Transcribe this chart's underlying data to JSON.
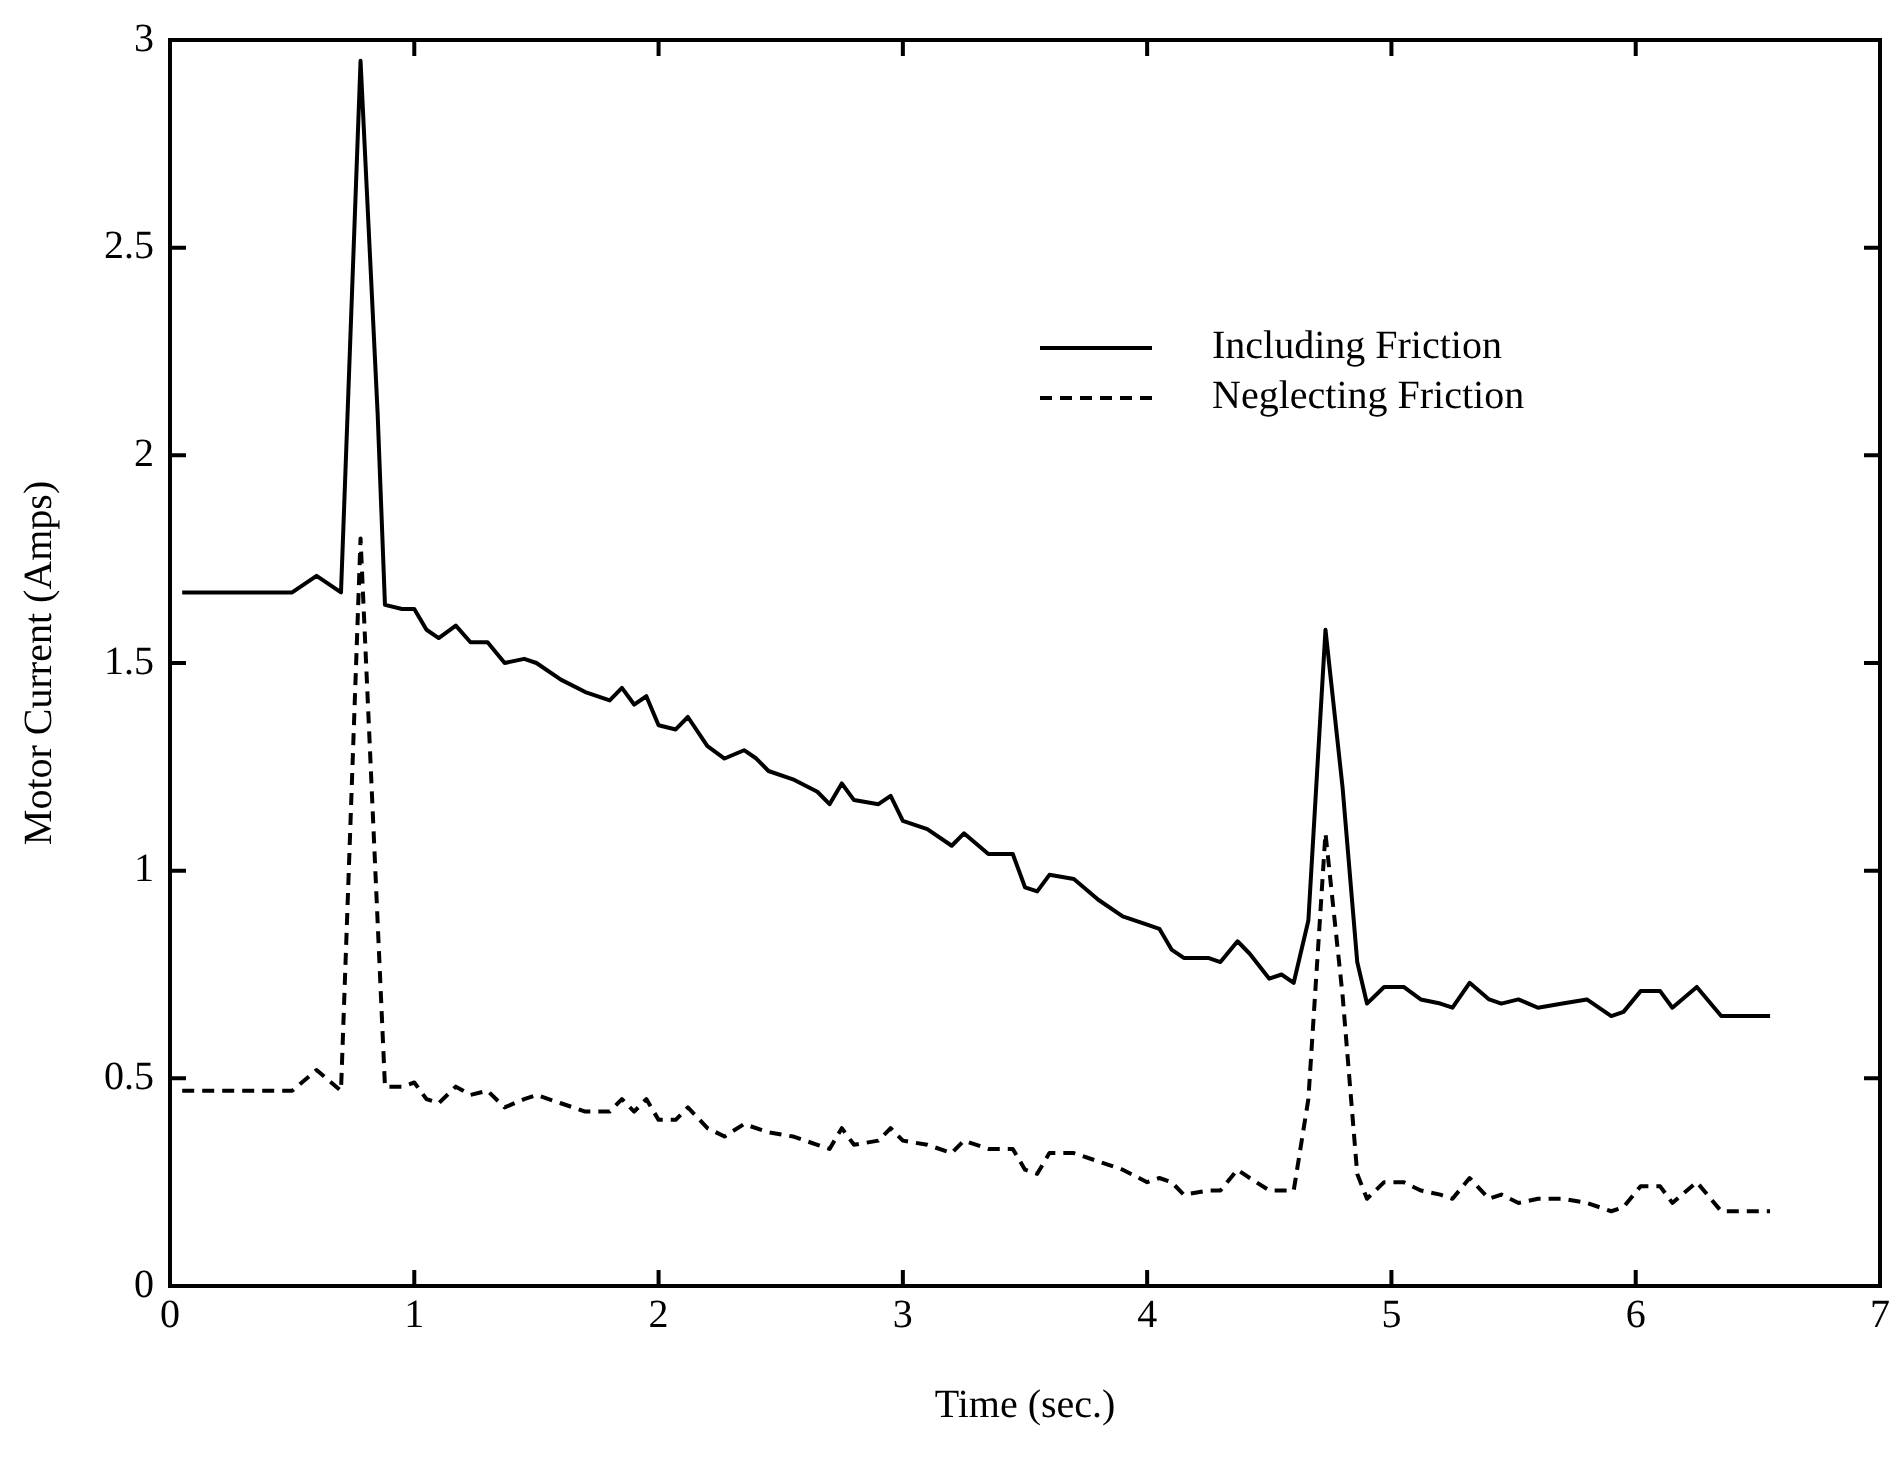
{
  "chart_data": {
    "type": "line",
    "xlabel": "Time (sec.)",
    "ylabel": "Motor Current (Amps)",
    "xlim": [
      0,
      7
    ],
    "xticks": [
      0,
      1,
      2,
      3,
      4,
      5,
      6,
      7
    ],
    "ylim": [
      0,
      3
    ],
    "yticks": [
      0,
      0.5,
      1,
      1.5,
      2,
      2.5,
      3
    ],
    "grid": false,
    "legend": "top right",
    "marker": "none",
    "series": [
      {
        "name": "Including Friction",
        "color": "#000000",
        "line_style": "solid",
        "x": [
          0.05,
          0.5,
          0.6,
          0.7,
          0.78,
          0.85,
          0.88,
          0.95,
          1.0,
          1.05,
          1.1,
          1.17,
          1.23,
          1.3,
          1.37,
          1.45,
          1.5,
          1.6,
          1.7,
          1.8,
          1.85,
          1.9,
          1.95,
          2.0,
          2.07,
          2.12,
          2.2,
          2.27,
          2.35,
          2.4,
          2.45,
          2.55,
          2.65,
          2.7,
          2.75,
          2.8,
          2.9,
          2.95,
          3.0,
          3.1,
          3.2,
          3.25,
          3.35,
          3.45,
          3.5,
          3.55,
          3.6,
          3.7,
          3.8,
          3.9,
          4.0,
          4.05,
          4.1,
          4.15,
          4.25,
          4.3,
          4.37,
          4.42,
          4.5,
          4.55,
          4.6,
          4.66,
          4.73,
          4.8,
          4.86,
          4.9,
          4.97,
          5.05,
          5.12,
          5.2,
          5.25,
          5.32,
          5.4,
          5.45,
          5.52,
          5.6,
          5.7,
          5.8,
          5.9,
          5.95,
          6.02,
          6.1,
          6.15,
          6.25,
          6.35,
          6.55
        ],
        "values": [
          1.67,
          1.67,
          1.71,
          1.67,
          2.95,
          2.1,
          1.64,
          1.63,
          1.63,
          1.58,
          1.56,
          1.59,
          1.55,
          1.55,
          1.5,
          1.51,
          1.5,
          1.46,
          1.43,
          1.41,
          1.44,
          1.4,
          1.42,
          1.35,
          1.34,
          1.37,
          1.3,
          1.27,
          1.29,
          1.27,
          1.24,
          1.22,
          1.19,
          1.16,
          1.21,
          1.17,
          1.16,
          1.18,
          1.12,
          1.1,
          1.06,
          1.09,
          1.04,
          1.04,
          0.96,
          0.95,
          0.99,
          0.98,
          0.93,
          0.89,
          0.87,
          0.86,
          0.81,
          0.79,
          0.79,
          0.78,
          0.83,
          0.8,
          0.74,
          0.75,
          0.73,
          0.88,
          1.58,
          1.2,
          0.78,
          0.68,
          0.72,
          0.72,
          0.69,
          0.68,
          0.67,
          0.73,
          0.69,
          0.68,
          0.69,
          0.67,
          0.68,
          0.69,
          0.65,
          0.66,
          0.71,
          0.71,
          0.67,
          0.72,
          0.65,
          0.65
        ]
      },
      {
        "name": "Neglecting Friction",
        "color": "#000000",
        "line_style": "dashed",
        "x": [
          0.05,
          0.5,
          0.6,
          0.7,
          0.78,
          0.88,
          0.95,
          1.0,
          1.05,
          1.1,
          1.17,
          1.23,
          1.3,
          1.37,
          1.45,
          1.5,
          1.6,
          1.7,
          1.8,
          1.85,
          1.9,
          1.95,
          2.0,
          2.07,
          2.12,
          2.2,
          2.27,
          2.35,
          2.45,
          2.55,
          2.65,
          2.7,
          2.75,
          2.8,
          2.9,
          2.95,
          3.0,
          3.1,
          3.2,
          3.25,
          3.35,
          3.45,
          3.5,
          3.55,
          3.6,
          3.7,
          3.8,
          3.9,
          4.0,
          4.05,
          4.1,
          4.15,
          4.25,
          4.3,
          4.37,
          4.42,
          4.5,
          4.6,
          4.66,
          4.73,
          4.8,
          4.86,
          4.9,
          4.97,
          5.05,
          5.12,
          5.2,
          5.25,
          5.32,
          5.4,
          5.45,
          5.52,
          5.6,
          5.7,
          5.8,
          5.9,
          5.95,
          6.02,
          6.1,
          6.15,
          6.25,
          6.35,
          6.55
        ],
        "values": [
          0.47,
          0.47,
          0.52,
          0.47,
          1.8,
          0.48,
          0.48,
          0.49,
          0.45,
          0.44,
          0.48,
          0.46,
          0.47,
          0.43,
          0.45,
          0.46,
          0.44,
          0.42,
          0.42,
          0.45,
          0.42,
          0.45,
          0.4,
          0.4,
          0.43,
          0.38,
          0.36,
          0.39,
          0.37,
          0.36,
          0.34,
          0.33,
          0.38,
          0.34,
          0.35,
          0.38,
          0.35,
          0.34,
          0.32,
          0.35,
          0.33,
          0.33,
          0.28,
          0.27,
          0.32,
          0.32,
          0.3,
          0.28,
          0.25,
          0.26,
          0.25,
          0.22,
          0.23,
          0.23,
          0.28,
          0.26,
          0.23,
          0.23,
          0.45,
          1.09,
          0.7,
          0.27,
          0.21,
          0.25,
          0.25,
          0.23,
          0.22,
          0.21,
          0.26,
          0.21,
          0.22,
          0.2,
          0.21,
          0.21,
          0.2,
          0.18,
          0.19,
          0.24,
          0.24,
          0.2,
          0.25,
          0.18,
          0.18
        ]
      }
    ]
  }
}
